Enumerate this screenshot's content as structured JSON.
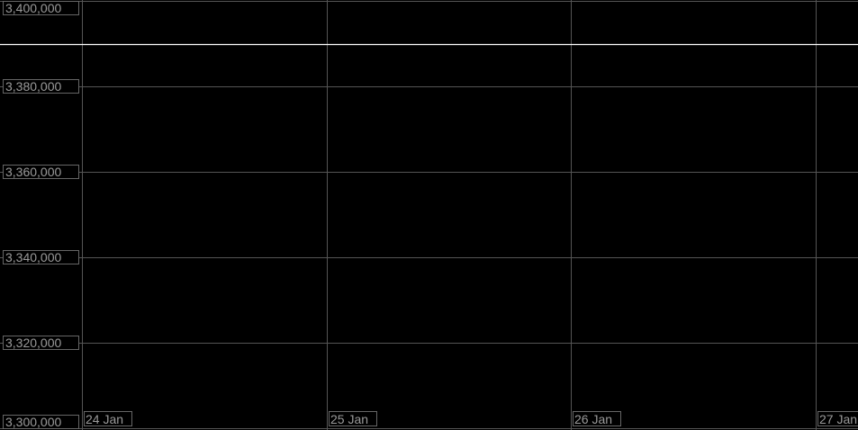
{
  "chart_data": {
    "type": "line",
    "title": "",
    "xlabel": "",
    "ylabel": "",
    "x_tick_labels": [
      "24 Jan",
      "25 Jan",
      "26 Jan",
      "27 Jan"
    ],
    "y_tick_labels": [
      "3,300,000",
      "3,320,000",
      "3,340,000",
      "3,360,000",
      "3,380,000",
      "3,400,000"
    ],
    "y_ticks": [
      3300000,
      3320000,
      3340000,
      3360000,
      3380000,
      3400000
    ],
    "ylim": [
      3300000,
      3400000
    ],
    "grid": true,
    "series": [
      {
        "x": [
          "24 Jan",
          "27 Jan"
        ],
        "values": [
          3390000,
          3390000
        ],
        "color": "#ffffff"
      }
    ],
    "colors": {
      "background": "#000000",
      "grid": "#555555",
      "label": "#9a9a9a"
    }
  }
}
